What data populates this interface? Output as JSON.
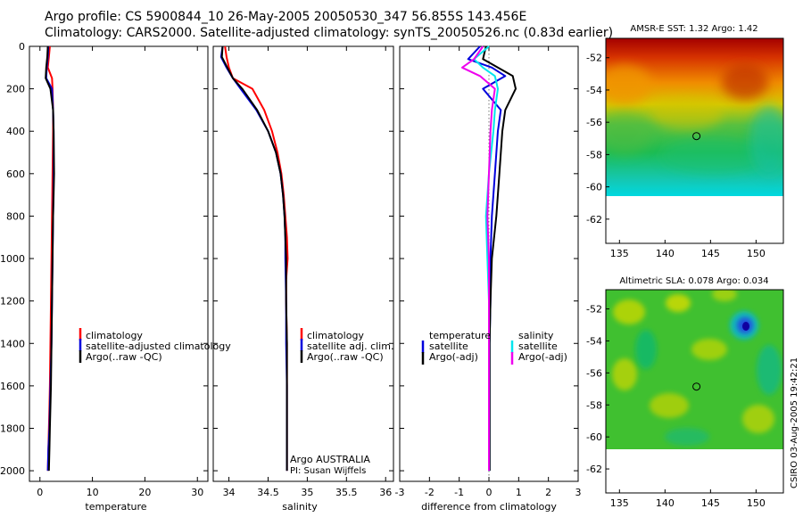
{
  "header": {
    "line1": "Argo profile: CS 5900844_10 26-May-2005 20050530_347 56.855S 143.456E",
    "line2": "Climatology: CARS2000. Satellite-adjusted climatology: synTS_20050526.nc (0.83d earlier)"
  },
  "credit": {
    "program": "Argo AUSTRALIA",
    "pi": "PI: Susan Wijffels",
    "stamp": "CSIRO 03-Aug-2005 19:42:21"
  },
  "colors": {
    "climatology": "#ff0000",
    "satellite": "#0000dd",
    "argo": "#000000",
    "salinity_satellite": "#00e5ee",
    "salinity_argo": "#ee00ee"
  },
  "chart_data": [
    {
      "type": "line",
      "id": "temperature",
      "xlabel": "temperature",
      "ylabel": "",
      "xlim": [
        -2,
        32
      ],
      "ylim": [
        2050,
        0
      ],
      "y_reversed": true,
      "xticks": [
        0,
        10,
        20,
        30
      ],
      "yticks": [
        0,
        200,
        400,
        600,
        800,
        1000,
        1200,
        1400,
        1600,
        1800,
        2000
      ],
      "legend_position": "center-right",
      "legend": [
        "climatology",
        "satellite-adjusted climatology",
        "Argo(..raw -QC)"
      ],
      "series": [
        {
          "name": "climatology",
          "color": "#ff0000",
          "x": [
            1.9,
            1.7,
            1.5,
            2.3,
            2.4,
            2.5,
            2.5,
            2.4,
            2.3,
            2.2,
            2.1,
            2.0,
            1.9,
            1.8,
            1.7,
            1.6,
            1.5
          ],
          "y": [
            0,
            50,
            100,
            150,
            200,
            300,
            400,
            600,
            800,
            1000,
            1200,
            1400,
            1600,
            1700,
            1800,
            1900,
            2000
          ]
        },
        {
          "name": "satellite-adjusted climatology",
          "color": "#0000dd",
          "x": [
            1.6,
            1.5,
            1.3,
            1.2,
            2.3,
            2.5,
            2.6,
            2.6,
            2.5,
            2.4,
            2.3,
            2.2,
            2.1,
            2.0,
            1.9,
            1.8,
            1.6,
            1.5
          ],
          "y": [
            0,
            50,
            100,
            150,
            200,
            300,
            400,
            600,
            800,
            1000,
            1200,
            1400,
            1500,
            1600,
            1700,
            1800,
            1900,
            2000
          ]
        },
        {
          "name": "Argo(..raw -QC)",
          "color": "#000000",
          "x": [
            1.5,
            1.4,
            1.2,
            1.1,
            2.0,
            2.5,
            2.6,
            2.7,
            2.6,
            2.5,
            2.4,
            2.3,
            2.2,
            2.1,
            2.0,
            1.9,
            1.8,
            1.7
          ],
          "y": [
            0,
            50,
            100,
            150,
            200,
            300,
            400,
            600,
            700,
            800,
            1000,
            1200,
            1400,
            1600,
            1700,
            1800,
            1900,
            2000
          ]
        }
      ]
    },
    {
      "type": "line",
      "id": "salinity",
      "xlabel": "salinity",
      "ylabel": "",
      "xlim": [
        33.8,
        36.1
      ],
      "ylim": [
        2050,
        0
      ],
      "y_reversed": true,
      "xticks": [
        34,
        34.5,
        35,
        35.5,
        36
      ],
      "legend_position": "center-right",
      "legend": [
        "climatology",
        "satellite adj. clim.",
        "Argo(..raw -QC)"
      ],
      "series": [
        {
          "name": "climatology",
          "color": "#ff0000",
          "x": [
            33.95,
            33.97,
            34.0,
            34.05,
            34.3,
            34.45,
            34.55,
            34.62,
            34.67,
            34.7,
            34.72,
            34.74,
            34.75,
            34.73,
            34.73,
            34.74,
            34.74,
            34.74,
            34.74,
            34.74
          ],
          "y": [
            0,
            50,
            100,
            150,
            200,
            300,
            400,
            500,
            600,
            700,
            800,
            900,
            1000,
            1100,
            1200,
            1400,
            1600,
            1800,
            1900,
            2000
          ]
        },
        {
          "name": "satellite adj. clim.",
          "color": "#0000dd",
          "x": [
            33.92,
            33.9,
            33.97,
            34.05,
            34.15,
            34.35,
            34.5,
            34.6,
            34.66,
            34.69,
            34.71,
            34.72,
            34.72,
            34.73,
            34.73,
            34.74,
            34.74,
            34.74,
            34.74
          ],
          "y": [
            0,
            50,
            100,
            150,
            200,
            300,
            400,
            500,
            600,
            700,
            800,
            900,
            1000,
            1200,
            1400,
            1600,
            1800,
            1900,
            2000
          ]
        },
        {
          "name": "Argo(..raw -QC)",
          "color": "#000000",
          "x": [
            33.92,
            33.91,
            33.98,
            34.05,
            34.17,
            34.36,
            34.5,
            34.6,
            34.66,
            34.69,
            34.71,
            34.72,
            34.73,
            34.73,
            34.74,
            34.74,
            34.74,
            34.74
          ],
          "y": [
            0,
            50,
            100,
            150,
            200,
            300,
            400,
            500,
            600,
            700,
            800,
            900,
            1000,
            1200,
            1400,
            1600,
            1800,
            2000
          ]
        }
      ]
    },
    {
      "type": "line",
      "id": "difference",
      "xlabel": "difference from climatology",
      "ylabel": "",
      "xlim": [
        -3,
        3
      ],
      "ylim": [
        2050,
        0
      ],
      "y_reversed": true,
      "xticks": [
        -3,
        -2,
        -1,
        0,
        1,
        2,
        3
      ],
      "legend_position": "center",
      "legend_groups": [
        {
          "title": "temperature",
          "entries": [
            "satellite",
            "Argo(-adj)"
          ]
        },
        {
          "title": "salinity",
          "entries": [
            "satellite",
            "Argo(-adj)"
          ]
        }
      ],
      "series": [
        {
          "name": "temperature satellite",
          "color": "#0000dd",
          "x": [
            -0.3,
            -0.7,
            0.1,
            0.55,
            -0.2,
            0.4,
            0.3,
            0.2,
            0.1,
            0.05,
            0.05,
            0.02,
            0.02,
            0.02
          ],
          "y": [
            0,
            60,
            100,
            140,
            200,
            300,
            400,
            600,
            800,
            1000,
            1200,
            1400,
            1600,
            2000
          ]
        },
        {
          "name": "temperature Argo(-adj)",
          "color": "#000000",
          "x": [
            -0.1,
            -0.2,
            0.3,
            0.8,
            0.9,
            0.55,
            0.45,
            0.35,
            0.25,
            0.1,
            0.05,
            0.02,
            0.02,
            0.02
          ],
          "y": [
            0,
            60,
            100,
            140,
            200,
            300,
            400,
            600,
            800,
            1000,
            1200,
            1400,
            1600,
            2000
          ]
        },
        {
          "name": "salinity satellite",
          "color": "#00e5ee",
          "x": [
            0.0,
            -0.5,
            -0.2,
            0.2,
            0.3,
            0.2,
            0.15,
            0.0,
            -0.1,
            -0.05,
            0.0,
            0.0,
            0.0,
            0.0
          ],
          "y": [
            0,
            60,
            100,
            140,
            200,
            300,
            400,
            600,
            800,
            1000,
            1200,
            1400,
            1600,
            2000
          ]
        },
        {
          "name": "salinity Argo(-adj)",
          "color": "#ee00ee",
          "x": [
            -0.2,
            -0.5,
            -0.9,
            -0.3,
            0.2,
            0.1,
            0.05,
            0.0,
            -0.05,
            0.0,
            0.0,
            0.0,
            0.0,
            0.0
          ],
          "y": [
            0,
            60,
            100,
            140,
            200,
            300,
            400,
            600,
            800,
            1000,
            1200,
            1400,
            1600,
            2000
          ]
        }
      ]
    },
    {
      "type": "heatmap",
      "id": "sst",
      "title": "AMSR-E SST: 1.32 Argo: 1.42",
      "xlim": [
        133.5,
        153
      ],
      "ylim": [
        -63.5,
        -50.8
      ],
      "xticks": [
        135,
        140,
        145,
        150
      ],
      "yticks": [
        -52,
        -54,
        -56,
        -58,
        -60,
        -62
      ],
      "data_ylim": [
        -60,
        -50.8
      ],
      "marker": {
        "lon": 143.456,
        "lat": -56.855
      }
    },
    {
      "type": "heatmap",
      "id": "sla",
      "title": "Altimetric SLA: 0.078 Argo: 0.034",
      "xlim": [
        133.5,
        153
      ],
      "ylim": [
        -63.5,
        -50.8
      ],
      "xticks": [
        135,
        140,
        145,
        150
      ],
      "yticks": [
        -52,
        -54,
        -56,
        -58,
        -60,
        -62
      ],
      "data_ylim": [
        -60,
        -50.8
      ],
      "marker": {
        "lon": 143.456,
        "lat": -56.855
      }
    }
  ]
}
